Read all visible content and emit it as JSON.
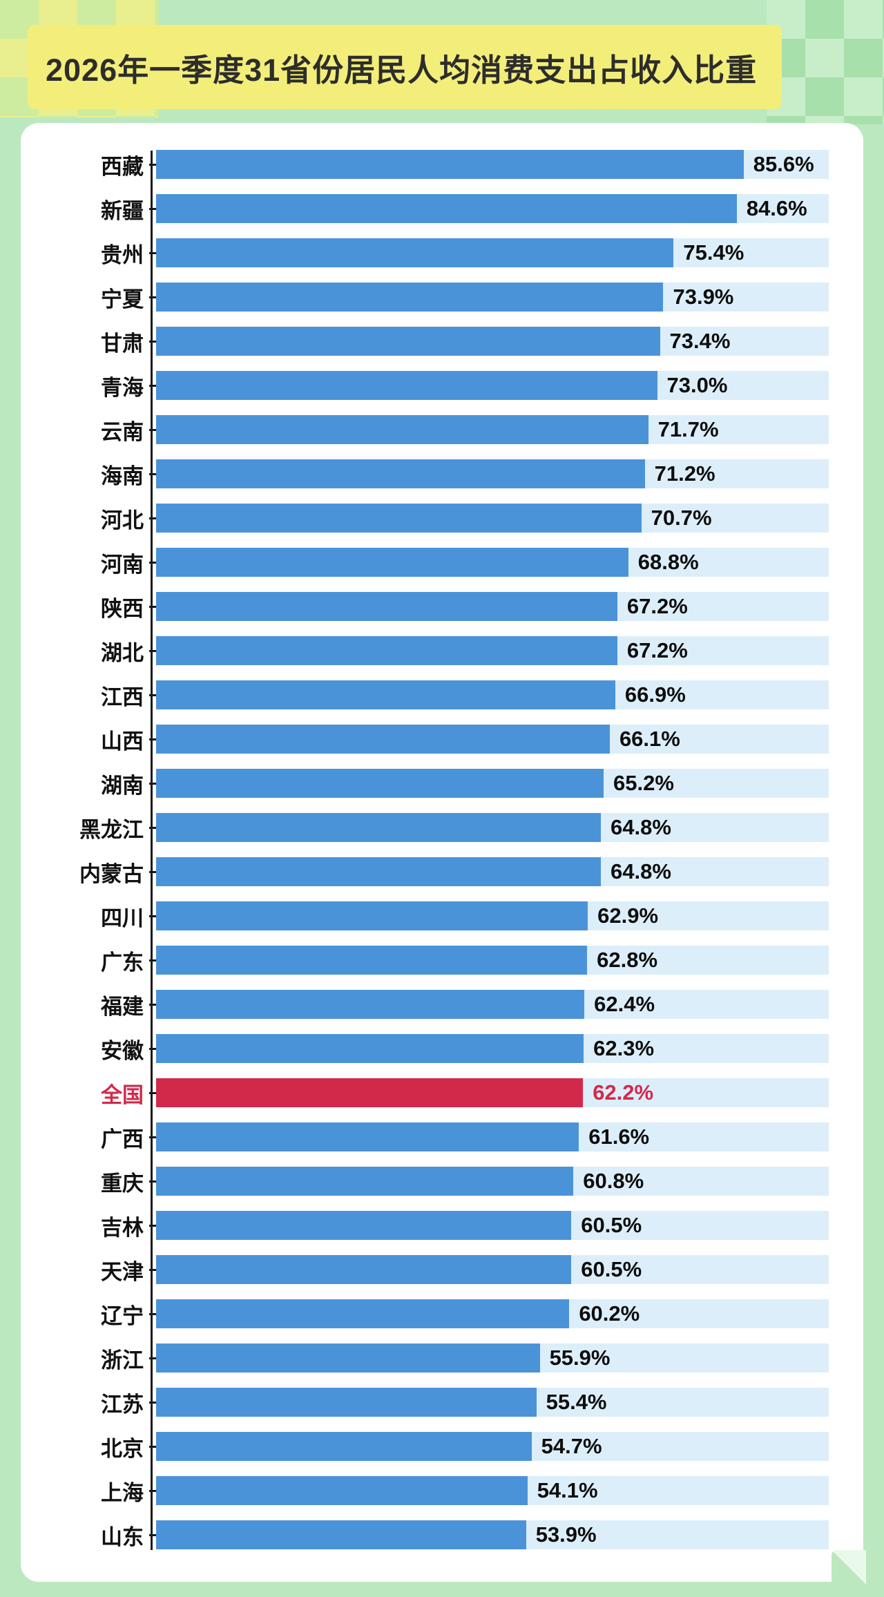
{
  "page": {
    "background_color": "#bce8bf",
    "banner_color": "#f3ee7a",
    "title_color": "#2d2d2d"
  },
  "chart_data": {
    "type": "bar",
    "orientation": "horizontal",
    "title": "2026年一季度31省份居民人均消费支出占收入比重",
    "categories": [
      "西藏",
      "新疆",
      "贵州",
      "宁夏",
      "甘肃",
      "青海",
      "云南",
      "海南",
      "河北",
      "河南",
      "陕西",
      "湖北",
      "江西",
      "山西",
      "湖南",
      "黑龙江",
      "内蒙古",
      "四川",
      "广东",
      "福建",
      "安徽",
      "全国",
      "广西",
      "重庆",
      "吉林",
      "天津",
      "辽宁",
      "浙江",
      "江苏",
      "北京",
      "上海",
      "山东"
    ],
    "values": [
      85.6,
      84.6,
      75.4,
      73.9,
      73.4,
      73.0,
      71.7,
      71.2,
      70.7,
      68.8,
      67.2,
      67.2,
      66.9,
      66.1,
      65.2,
      64.8,
      64.8,
      62.9,
      62.8,
      62.4,
      62.3,
      62.2,
      61.6,
      60.8,
      60.5,
      60.5,
      60.2,
      55.9,
      55.4,
      54.7,
      54.1,
      53.9
    ],
    "value_labels": [
      "85.6%",
      "84.6%",
      "75.4%",
      "73.9%",
      "73.4%",
      "73.0%",
      "71.7%",
      "71.2%",
      "70.7%",
      "68.8%",
      "67.2%",
      "67.2%",
      "66.9%",
      "66.1%",
      "65.2%",
      "64.8%",
      "64.8%",
      "62.9%",
      "62.8%",
      "62.4%",
      "62.3%",
      "62.2%",
      "61.6%",
      "60.8%",
      "60.5%",
      "60.5%",
      "60.2%",
      "55.9%",
      "55.4%",
      "54.7%",
      "54.1%",
      "53.9%"
    ],
    "highlight_category": "全国",
    "axis_max": 98,
    "grid": false,
    "legend": false,
    "colors": {
      "bar": "#4b93d8",
      "track": "#dceef9",
      "highlight": "#d2294a",
      "label": "#111111",
      "value": "#0d0d0d"
    }
  }
}
